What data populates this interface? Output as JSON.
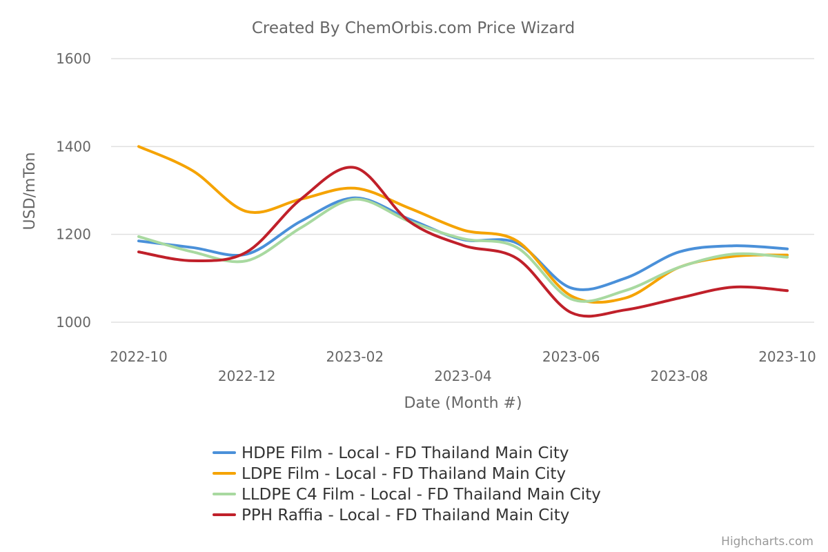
{
  "chart_data": {
    "type": "line",
    "title": "Created By ChemOrbis.com Price Wizard",
    "xlabel": "Date (Month #)",
    "ylabel": "USD/mTon",
    "ylim": [
      1000,
      1600
    ],
    "yticks": [
      1000,
      1200,
      1400,
      1600
    ],
    "xlim": [
      "2022-10",
      "2023-10"
    ],
    "xticks": [
      "2022-10",
      "2022-12",
      "2023-02",
      "2023-04",
      "2023-06",
      "2023-08",
      "2023-10"
    ],
    "x": [
      "2022-10",
      "2022-11",
      "2022-12",
      "2023-01",
      "2023-02",
      "2023-03",
      "2023-04",
      "2023-05",
      "2023-06",
      "2023-07",
      "2023-08",
      "2023-09",
      "2023-10"
    ],
    "grid": true,
    "legend_position": "bottom-center",
    "series": [
      {
        "name": "HDPE Film - Local - FD Thailand Main City",
        "color": "#4a90d9",
        "values": [
          1185,
          1170,
          1155,
          1230,
          1283,
          1235,
          1188,
          1180,
          1078,
          1100,
          1160,
          1174,
          1167
        ]
      },
      {
        "name": "LDPE Film - Local - FD Thailand Main City",
        "color": "#f5a300",
        "values": [
          1400,
          1345,
          1252,
          1280,
          1305,
          1260,
          1210,
          1185,
          1060,
          1055,
          1125,
          1150,
          1153
        ]
      },
      {
        "name": "LLDPE C4 Film - Local - FD Thailand Main City",
        "color": "#a8d9a0",
        "values": [
          1195,
          1160,
          1140,
          1215,
          1280,
          1230,
          1190,
          1170,
          1053,
          1072,
          1125,
          1155,
          1148
        ]
      },
      {
        "name": "PPH Raffia - Local - FD Thailand Main City",
        "color": "#c0202a",
        "values": [
          1160,
          1140,
          1160,
          1280,
          1352,
          1230,
          1175,
          1145,
          1022,
          1028,
          1055,
          1080,
          1072
        ]
      }
    ]
  },
  "credits": "Highcharts.com"
}
